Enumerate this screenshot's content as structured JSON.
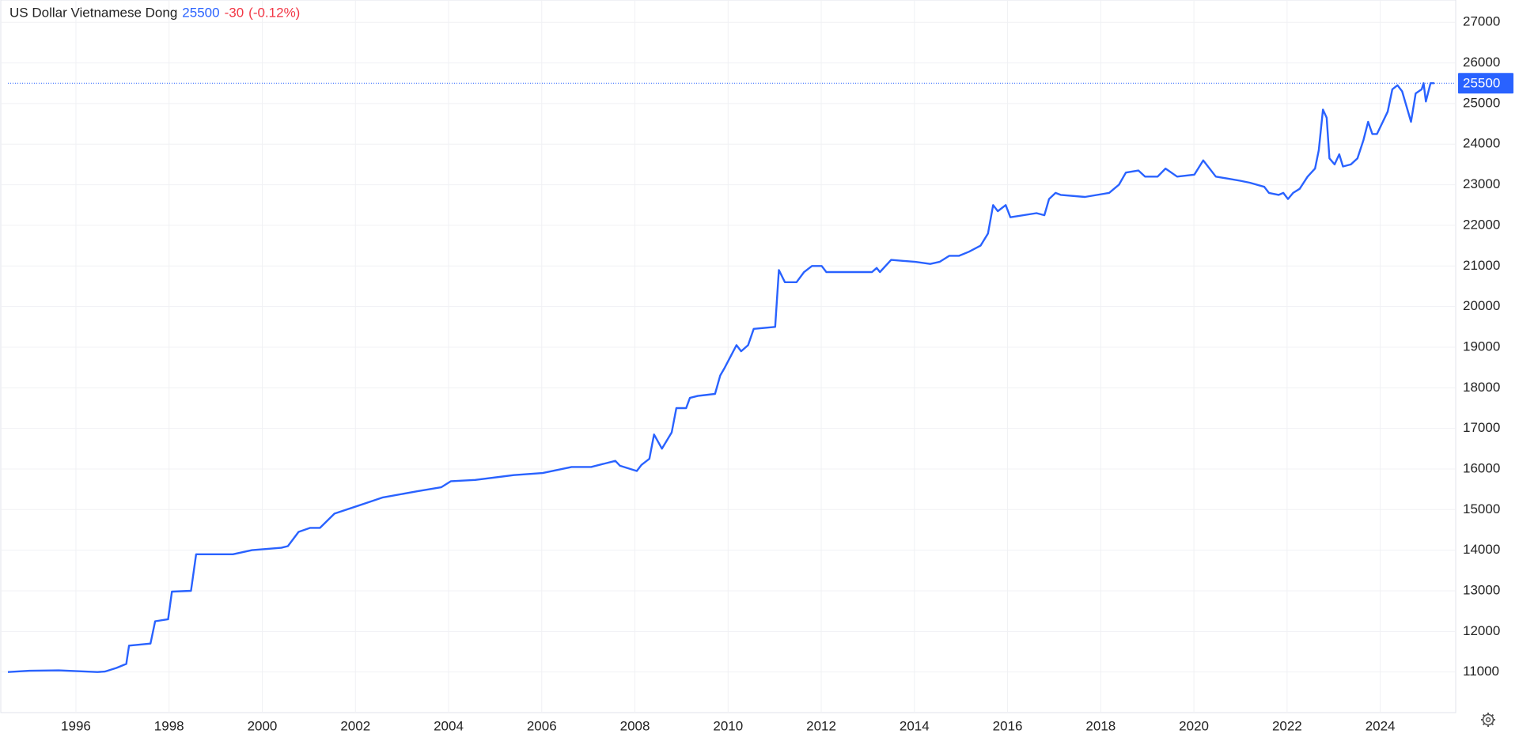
{
  "chart_data": {
    "type": "line",
    "title": "US Dollar Vietnamese Dong",
    "last_price": 25500,
    "change": "-30",
    "change_pct": "(-0.12%)",
    "series": [
      {
        "name": "US Dollar Vietnamese Dong",
        "color": "#2962ff",
        "x": [
          1994.54,
          1995.0,
          1995.63,
          1996.46,
          1996.62,
          1996.87,
          1997.08,
          1997.14,
          1997.6,
          1997.7,
          1997.98,
          1998.06,
          1998.47,
          1998.58,
          1998.85,
          1999.37,
          1999.78,
          2000.41,
          2000.55,
          2000.78,
          2001.03,
          2001.24,
          2001.55,
          2002.07,
          2002.59,
          2003.32,
          2003.84,
          2004.05,
          2004.57,
          2005.4,
          2006.02,
          2006.64,
          2007.06,
          2007.58,
          2007.68,
          2008.04,
          2008.14,
          2008.31,
          2008.41,
          2008.58,
          2008.79,
          2008.89,
          2009.1,
          2009.18,
          2009.35,
          2009.72,
          2009.83,
          2009.93,
          2010.18,
          2010.28,
          2010.43,
          2010.55,
          2011.01,
          2011.09,
          2011.22,
          2011.47,
          2011.63,
          2011.8,
          2012.01,
          2012.11,
          2012.67,
          2013.09,
          2013.19,
          2013.26,
          2013.5,
          2014.02,
          2014.34,
          2014.54,
          2014.75,
          2014.96,
          2015.17,
          2015.42,
          2015.58,
          2015.69,
          2015.79,
          2015.96,
          2016.06,
          2016.62,
          2016.79,
          2016.89,
          2017.03,
          2017.14,
          2017.66,
          2018.18,
          2018.39,
          2018.54,
          2018.81,
          2018.95,
          2019.22,
          2019.39,
          2019.64,
          2020.01,
          2020.2,
          2020.47,
          2020.74,
          2020.99,
          2021.2,
          2021.51,
          2021.61,
          2021.82,
          2021.92,
          2022.02,
          2022.13,
          2022.27,
          2022.44,
          2022.6,
          2022.68,
          2022.77,
          2022.85,
          2022.91,
          2023.02,
          2023.12,
          2023.2,
          2023.37,
          2023.51,
          2023.64,
          2023.74,
          2023.83,
          2023.93,
          2024.16,
          2024.26,
          2024.37,
          2024.47,
          2024.66,
          2024.76,
          2024.89,
          2024.93,
          2024.98,
          2025.08,
          2025.16
        ],
        "values": [
          11000,
          11030,
          11040,
          11000,
          11010,
          11100,
          11200,
          11650,
          11700,
          12250,
          12300,
          12980,
          13000,
          13900,
          13900,
          13900,
          14000,
          14060,
          14100,
          14450,
          14550,
          14550,
          14900,
          15100,
          15300,
          15450,
          15550,
          15700,
          15730,
          15850,
          15900,
          16050,
          16050,
          16200,
          16080,
          15950,
          16100,
          16250,
          16850,
          16500,
          16900,
          17500,
          17500,
          17750,
          17800,
          17850,
          18300,
          18500,
          19050,
          18900,
          19050,
          19450,
          19500,
          20900,
          20600,
          20600,
          20850,
          21000,
          21000,
          20850,
          20850,
          20850,
          20950,
          20850,
          21150,
          21100,
          21050,
          21100,
          21250,
          21250,
          21350,
          21500,
          21800,
          22500,
          22350,
          22500,
          22200,
          22300,
          22250,
          22650,
          22800,
          22750,
          22700,
          22800,
          23000,
          23300,
          23350,
          23200,
          23200,
          23400,
          23200,
          23250,
          23600,
          23200,
          23150,
          23100,
          23050,
          22950,
          22800,
          22750,
          22800,
          22650,
          22800,
          22900,
          23200,
          23400,
          23850,
          24850,
          24650,
          23650,
          23500,
          23750,
          23450,
          23500,
          23650,
          24100,
          24550,
          24250,
          24250,
          24800,
          25350,
          25450,
          25300,
          24550,
          25250,
          25350,
          25500,
          25050,
          25500,
          25500
        ]
      }
    ],
    "xlim": [
      1994.54,
      2025.62
    ],
    "xticks": [
      1996,
      1998,
      2000,
      2002,
      2004,
      2006,
      2008,
      2010,
      2012,
      2014,
      2016,
      2018,
      2020,
      2022,
      2024
    ],
    "ylim": [
      10000,
      27550
    ],
    "yticks": [
      11000,
      12000,
      13000,
      14000,
      15000,
      16000,
      17000,
      18000,
      19000,
      20000,
      21000,
      22000,
      23000,
      24000,
      25000,
      26000,
      27000
    ],
    "grid": true
  }
}
